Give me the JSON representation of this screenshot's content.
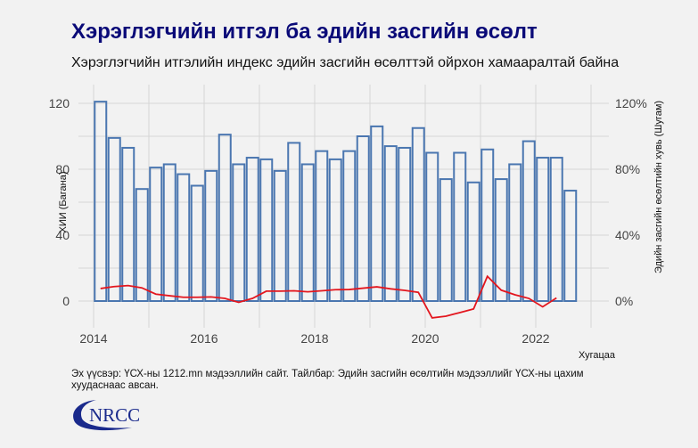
{
  "title": "Хэрэглэгчийн итгэл ба эдийн засгийн өсөлт",
  "subtitle": "Хэрэглэгчийн итгэлийн индекс эдийн засгийн өсөлттэй ойрхон хамааралтай байна",
  "footer": "Эх үүсвэр: ҮСХ-ны 1212.mn мэдээллийн сайт. Тайлбар: Эдийн засгийн өсөлтийн мэдээллийг ҮСХ-ны цахим хуудаснаас авсан.",
  "logo_text": "NRCC",
  "colors": {
    "bar": "#4a76b0",
    "line": "#e3161e",
    "title": "#0a0a78"
  },
  "chart_data": {
    "type": "bar+line",
    "xlabel": "Хугацаа",
    "ylabel_left": "ХИИ (Багана)",
    "ylabel_right": "Эдийн засгийн өсөлтийн хувь (Шугам)",
    "ylim_left": [
      -15,
      130
    ],
    "ylim_right": [
      -15,
      130
    ],
    "left_ticks": [
      "0",
      "40",
      "80",
      "120"
    ],
    "left_tick_values": [
      0,
      40,
      80,
      120
    ],
    "right_ticks": [
      "0%",
      "40%",
      "80%",
      "120%"
    ],
    "right_tick_values": [
      0,
      40,
      80,
      120
    ],
    "x_ticks": [
      "2014",
      "2016",
      "2018",
      "2020",
      "2022"
    ],
    "x_tick_values": [
      2014,
      2016,
      2018,
      2020,
      2022
    ],
    "start": {
      "year": 2014,
      "quarter": 1
    },
    "grid": true,
    "series": [
      {
        "name": "ХИИ",
        "kind": "bar",
        "values": [
          121,
          99,
          93,
          68,
          81,
          83,
          77,
          70,
          79,
          101,
          83,
          87,
          86,
          79,
          96,
          83,
          91,
          86,
          91,
          100,
          106,
          94,
          93,
          105,
          90,
          74,
          90,
          72,
          92,
          74,
          83,
          97,
          87,
          87,
          67
        ]
      },
      {
        "name": "Эдийн засгийн өсөлт (%)",
        "kind": "line",
        "values": [
          7.6,
          8.8,
          9.4,
          8.0,
          4.2,
          3.2,
          2.3,
          2.3,
          2.5,
          1.6,
          -0.8,
          1.6,
          6.0,
          6.0,
          6.2,
          5.6,
          6.2,
          6.9,
          7.0,
          7.8,
          8.6,
          7.4,
          6.5,
          5.3,
          -10.2,
          -9.2,
          -7.0,
          -4.8,
          15.0,
          6.6,
          3.8,
          1.6,
          -3.5,
          1.9
        ]
      }
    ]
  }
}
